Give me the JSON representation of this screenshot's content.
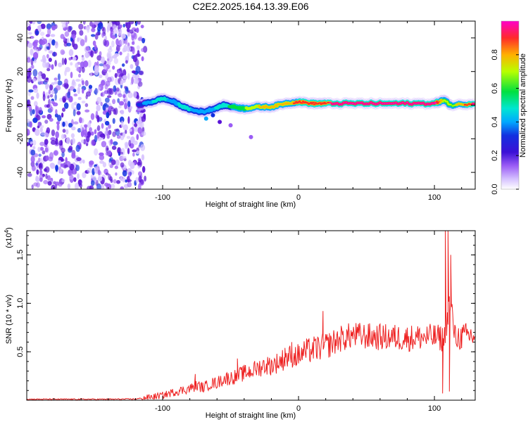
{
  "page": {
    "title": "C2E2.2025.164.13.39.E06"
  },
  "colors": {
    "spectrogram_palette": [
      "#ffffff",
      "#d6c2ff",
      "#9a5cf5",
      "#5a14d6",
      "#1230e0",
      "#00a8ff",
      "#00e6d2",
      "#00e040",
      "#b8ff00",
      "#ffb000",
      "#ff2a2a",
      "#ff00c8"
    ],
    "snr_line": "#ee2222"
  },
  "chart_data": [
    {
      "type": "heatmap",
      "xlabel": "Height of straight line (km)",
      "ylabel": "Frequency (Hz)",
      "xlim": [
        -200,
        130
      ],
      "ylim": [
        -50,
        50
      ],
      "x_ticks": [
        -100,
        0,
        100
      ],
      "y_ticks": [
        -40,
        -20,
        0,
        20,
        40
      ],
      "grid": false,
      "noise_region": {
        "x_range": [
          -200,
          -117
        ],
        "y_range": [
          -50,
          50
        ],
        "amplitude_range": [
          0.05,
          0.35
        ]
      },
      "ridge": [
        {
          "x": -118,
          "y": 0,
          "amplitude": 0.4
        },
        {
          "x": -108,
          "y": 2,
          "amplitude": 0.55
        },
        {
          "x": -100,
          "y": 4,
          "amplitude": 0.6
        },
        {
          "x": -92,
          "y": 2,
          "amplitude": 0.5
        },
        {
          "x": -85,
          "y": -1,
          "amplitude": 0.6
        },
        {
          "x": -78,
          "y": -3,
          "amplitude": 0.55
        },
        {
          "x": -70,
          "y": -4,
          "amplitude": 0.5
        },
        {
          "x": -62,
          "y": -2,
          "amplitude": 0.55
        },
        {
          "x": -55,
          "y": 0,
          "amplitude": 0.6
        },
        {
          "x": -48,
          "y": -1,
          "amplitude": 0.7
        },
        {
          "x": -40,
          "y": -2,
          "amplitude": 0.75
        },
        {
          "x": -30,
          "y": -1,
          "amplitude": 0.8
        },
        {
          "x": -20,
          "y": -1,
          "amplitude": 0.85
        },
        {
          "x": -10,
          "y": 1,
          "amplitude": 0.8
        },
        {
          "x": 0,
          "y": 2,
          "amplitude": 0.9
        },
        {
          "x": 10,
          "y": 1,
          "amplitude": 0.9
        },
        {
          "x": 20,
          "y": 1,
          "amplitude": 0.95
        },
        {
          "x": 40,
          "y": 1,
          "amplitude": 1.0
        },
        {
          "x": 60,
          "y": 1,
          "amplitude": 1.0
        },
        {
          "x": 80,
          "y": 1,
          "amplitude": 1.0
        },
        {
          "x": 100,
          "y": 1,
          "amplitude": 1.0
        },
        {
          "x": 107,
          "y": 3,
          "amplitude": 0.75
        },
        {
          "x": 112,
          "y": 0,
          "amplitude": 0.7
        },
        {
          "x": 130,
          "y": 1,
          "amplitude": 1.0
        }
      ],
      "blobs": [
        {
          "x": -68,
          "y": -8,
          "amplitude": 0.45
        },
        {
          "x": -58,
          "y": -10,
          "amplitude": 0.25
        },
        {
          "x": -50,
          "y": -12,
          "amplitude": 0.2
        },
        {
          "x": -35,
          "y": -19,
          "amplitude": 0.2
        },
        {
          "x": -63,
          "y": -6,
          "amplitude": 0.35
        }
      ]
    },
    {
      "type": "colorbar",
      "label": "Normalized spectral amplitude",
      "range": [
        0,
        1
      ],
      "ticks": [
        0.0,
        0.2,
        0.4,
        0.6,
        0.8
      ]
    },
    {
      "type": "line",
      "xlabel": "Height of straight line (km)",
      "ylabel": "SNR (10 * v/v)",
      "y_multiplier_label": "(x10",
      "y_multiplier_exp": "4",
      "y_multiplier_close": ")",
      "xlim": [
        -200,
        130
      ],
      "ylim": [
        0,
        17500
      ],
      "x_ticks": [
        -100,
        0,
        100
      ],
      "y_ticks": [
        0.5,
        1.0,
        1.5
      ],
      "grid": false,
      "series": [
        {
          "x": [
            -200,
            -180,
            -160,
            -140,
            -120,
            -110,
            -100,
            -90,
            -80,
            -75,
            -70,
            -65,
            -60,
            -55,
            -50,
            -45,
            -40,
            -35,
            -30,
            -25,
            -20,
            -15,
            -10,
            -5,
            0,
            5,
            10,
            15,
            20,
            25,
            30,
            35,
            40,
            50,
            60,
            70,
            80,
            90,
            100,
            105,
            107,
            109,
            111,
            113,
            115,
            120,
            125,
            130
          ],
          "y": [
            100,
            100,
            100,
            100,
            120,
            300,
            500,
            900,
            1200,
            1500,
            1300,
            1700,
            1800,
            2200,
            2300,
            2500,
            2800,
            3000,
            3300,
            3600,
            3600,
            3900,
            4300,
            4600,
            4600,
            5000,
            5200,
            5400,
            5600,
            5900,
            6300,
            6500,
            6700,
            6600,
            6500,
            6500,
            6400,
            6500,
            6500,
            6400,
            6300,
            8000,
            10000,
            9000,
            6500,
            6500,
            6700,
            6600
          ],
          "spikes": [
            {
              "x": -76,
              "y": 2700
            },
            {
              "x": -45,
              "y": 4300
            },
            {
              "x": -10,
              "y": 5400
            },
            {
              "x": -5,
              "y": 6000
            },
            {
              "x": 18,
              "y": 9200
            },
            {
              "x": 106,
              "y": 700
            },
            {
              "x": 108,
              "y": 17500
            },
            {
              "x": 110,
              "y": 17500
            },
            {
              "x": 111,
              "y": 900
            },
            {
              "x": 112,
              "y": 15000
            }
          ]
        }
      ]
    }
  ]
}
